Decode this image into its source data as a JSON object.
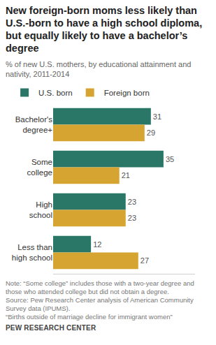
{
  "chart_data": {
    "type": "bar",
    "title": "New foreign-born  moms less likely than U.S.-born to have a high school diploma, but equally likely to have a bachelor’s degree",
    "subtitle": "% of new U.S. mothers, by educational attainment and nativity, 2011-2014",
    "categories": [
      "Bachelor's degree+",
      "Some college",
      "High school",
      "Less than high school"
    ],
    "series": [
      {
        "name": "U.S. born",
        "color": "#2a7767",
        "values": [
          31,
          35,
          23,
          12
        ]
      },
      {
        "name": "Foreign born",
        "color": "#d6a431",
        "values": [
          29,
          21,
          23,
          27
        ]
      }
    ],
    "orientation": "horizontal",
    "xlim": [
      0,
      45
    ],
    "data_labels": true,
    "tick_labels": "y",
    "grid": false,
    "legend": "top-left",
    "notes": [
      "Note: “Some college” includes those with a two-year degree and those who attended college but did not obtain a degree.",
      "Source: Pew Research Center analysis of American Community Survey data (IPUMS).",
      "“Births outside of marriage decline for immigrant women”"
    ],
    "credit": "PEW RESEARCH CENTER"
  }
}
